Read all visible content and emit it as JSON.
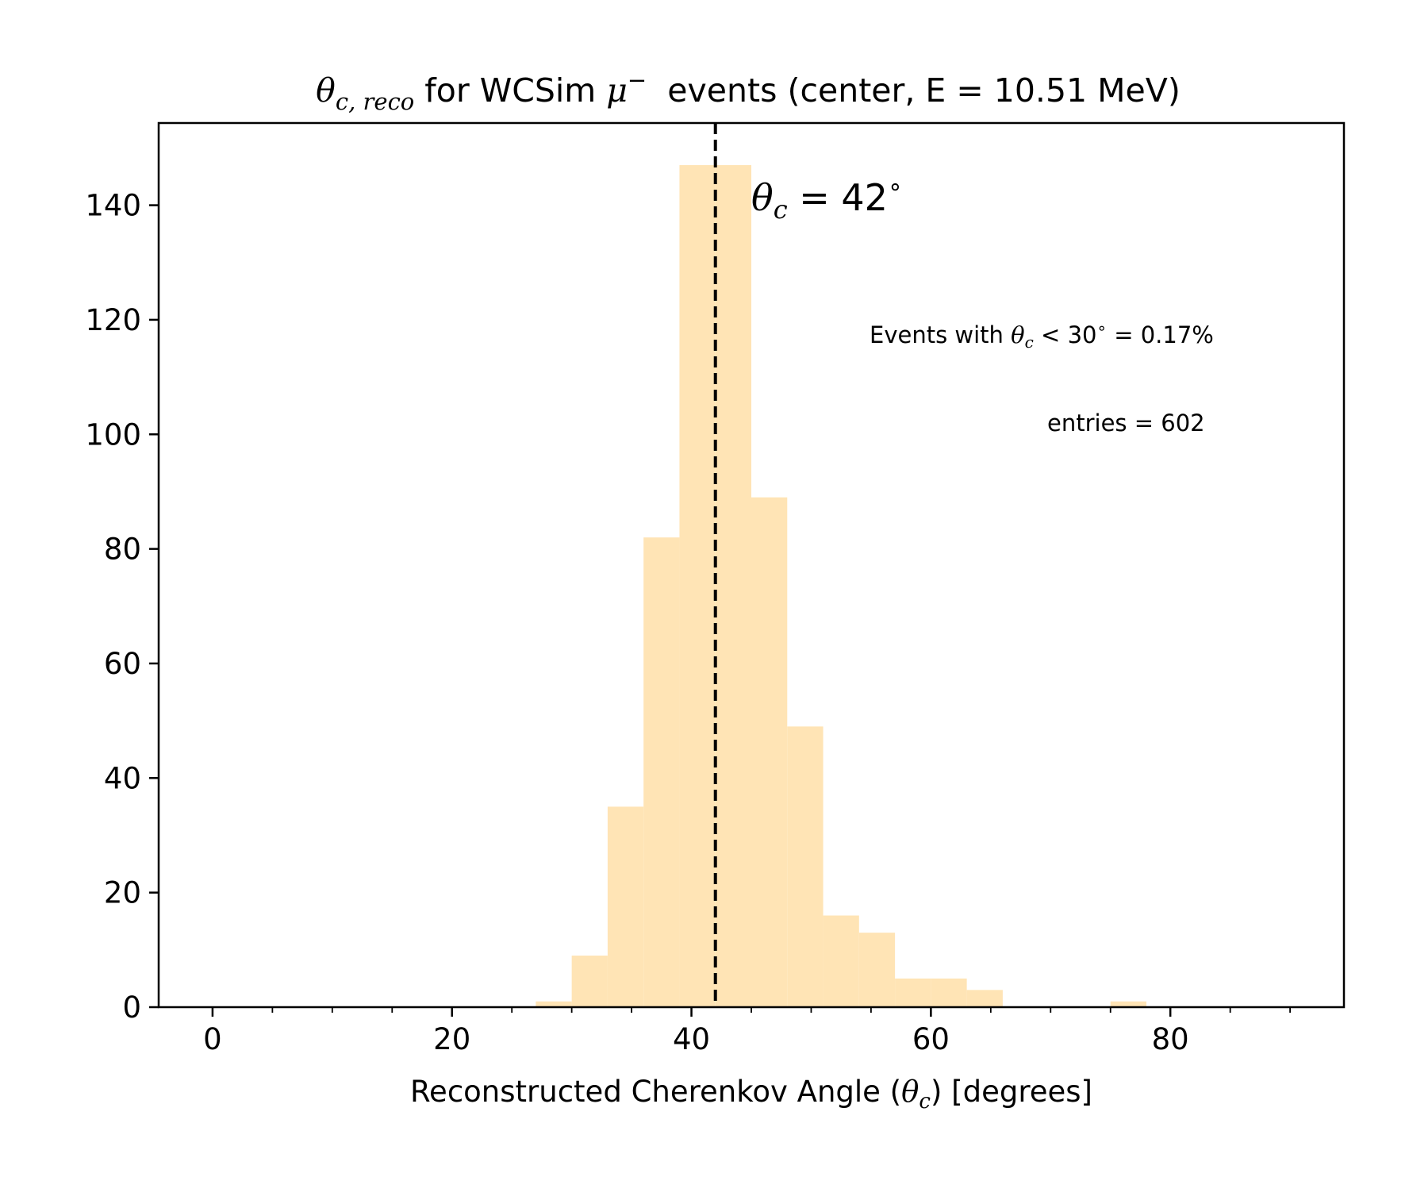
{
  "chart_data": {
    "type": "bar",
    "title": {
      "theta": "θ",
      "theta_sub": "c, reco",
      "text_a": " for WCSim ",
      "mu": "μ",
      "mu_sup": "−",
      "text_b": "  events (center, E = 10.51 MeV)"
    },
    "xlabel": {
      "text_a": "Reconstructed Cherenkov Angle (",
      "theta": "θ",
      "sub": "c",
      "text_b": ") [degrees]"
    },
    "ylabel": "",
    "xlim": [
      -4.5,
      94.5
    ],
    "ylim": [
      0,
      154.35
    ],
    "x_ticks": [
      0,
      20,
      40,
      60,
      80
    ],
    "x_minor_ticks": [
      5,
      10,
      15,
      25,
      30,
      35,
      45,
      50,
      55,
      65,
      70,
      75,
      85,
      90
    ],
    "y_ticks": [
      0,
      20,
      40,
      60,
      80,
      100,
      120,
      140
    ],
    "grid": false,
    "bar_color": "#ffe4b5",
    "bins": [
      {
        "x0": 27,
        "x1": 30,
        "count": 1
      },
      {
        "x0": 30,
        "x1": 33,
        "count": 9
      },
      {
        "x0": 33,
        "x1": 36,
        "count": 35
      },
      {
        "x0": 36,
        "x1": 39,
        "count": 82
      },
      {
        "x0": 39,
        "x1": 42,
        "count": 147
      },
      {
        "x0": 42,
        "x1": 45,
        "count": 147
      },
      {
        "x0": 45,
        "x1": 48,
        "count": 89
      },
      {
        "x0": 48,
        "x1": 51,
        "count": 49
      },
      {
        "x0": 51,
        "x1": 54,
        "count": 16
      },
      {
        "x0": 54,
        "x1": 57,
        "count": 13
      },
      {
        "x0": 57,
        "x1": 60,
        "count": 5
      },
      {
        "x0": 60,
        "x1": 63,
        "count": 5
      },
      {
        "x0": 63,
        "x1": 66,
        "count": 3
      },
      {
        "x0": 75,
        "x1": 78,
        "count": 1
      }
    ],
    "reference_line": {
      "x": 42,
      "style": "dashed",
      "color": "#000000"
    },
    "annotations": {
      "theta_c": {
        "theta": "θ",
        "sub": "c",
        "rest": " = 42",
        "sup": "∘"
      },
      "events_below": {
        "text_a": "Events with ",
        "theta": "θ",
        "sub": "c",
        "text_b": " < 30",
        "sup": "∘",
        "text_c": " = 0.17%"
      },
      "entries": "entries = 602"
    }
  }
}
